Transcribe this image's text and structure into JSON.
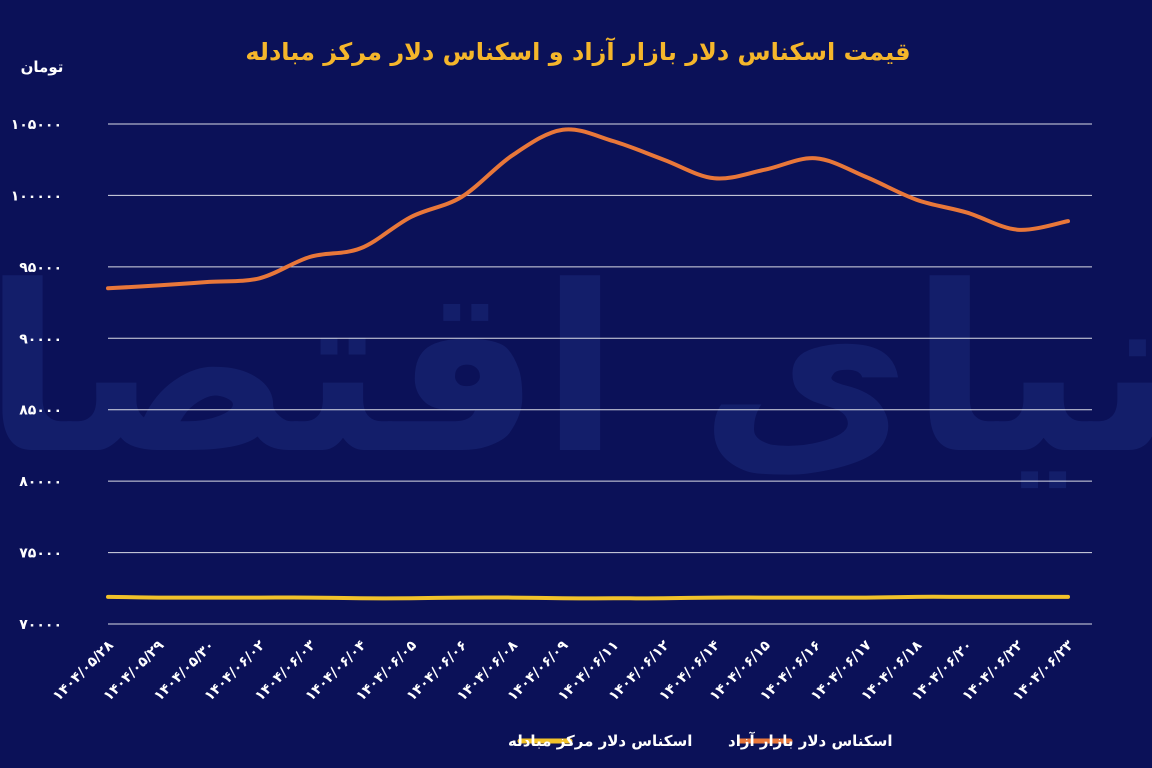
{
  "watermark": "دنیای اقتصاد",
  "colors": {
    "background": "#0b1158",
    "grid": "#ffffff",
    "text": "#ffffff",
    "title": "#f5b62b",
    "free_market": "#e8773a",
    "exchange_center": "#f2c22a",
    "watermark": "#1b2a7a"
  },
  "chart_data": {
    "type": "line",
    "title": "قیمت اسکناس دلار بازار آزاد و اسکناس دلار مرکز مبادله",
    "ylabel": "تومان",
    "xlabel": "",
    "ylim": [
      70000,
      105000
    ],
    "yticks": [
      70000,
      75000,
      80000,
      85000,
      90000,
      95000,
      100000,
      105000
    ],
    "ytick_labels": [
      "۷۰۰۰۰",
      "۷۵۰۰۰",
      "۸۰۰۰۰",
      "۸۵۰۰۰",
      "۹۰۰۰۰",
      "۹۵۰۰۰",
      "۱۰۰۰۰۰",
      "۱۰۵۰۰۰"
    ],
    "grid": true,
    "legend_position": "bottom-center",
    "x": [
      "۱۴۰۴/۰۵/۲۸",
      "۱۴۰۴/۰۵/۲۹",
      "۱۴۰۴/۰۵/۳۰",
      "۱۴۰۴/۰۶/۰۲",
      "۱۴۰۴/۰۶/۰۳",
      "۱۴۰۴/۰۶/۰۴",
      "۱۴۰۴/۰۶/۰۵",
      "۱۴۰۴/۰۶/۰۶",
      "۱۴۰۴/۰۶/۰۸",
      "۱۴۰۴/۰۶/۰۹",
      "۱۴۰۴/۰۶/۱۱",
      "۱۴۰۴/۰۶/۱۲",
      "۱۴۰۴/۰۶/۱۴",
      "۱۴۰۴/۰۶/۱۵",
      "۱۴۰۴/۰۶/۱۶",
      "۱۴۰۴/۰۶/۱۷",
      "۱۴۰۴/۰۶/۱۸",
      "۱۴۰۴/۰۶/۲۰",
      "۱۴۰۴/۰۶/۲۲",
      "۱۴۰۴/۰۶/۲۳"
    ],
    "series": [
      {
        "name": "اسکناس دلار بازار آزاد",
        "color": "#e8773a",
        "values": [
          93500,
          93700,
          93950,
          94200,
          95700,
          96300,
          98500,
          99900,
          102800,
          104600,
          103800,
          102500,
          101200,
          101800,
          102600,
          101300,
          99700,
          98800,
          97600,
          98200
        ]
      },
      {
        "name": "اسکناس دلار مرکز مبادله",
        "color": "#f2c22a",
        "values": [
          71900,
          71850,
          71850,
          71850,
          71850,
          71800,
          71800,
          71850,
          71850,
          71800,
          71800,
          71800,
          71850,
          71850,
          71850,
          71850,
          71900,
          71900,
          71900,
          71900
        ]
      }
    ]
  }
}
